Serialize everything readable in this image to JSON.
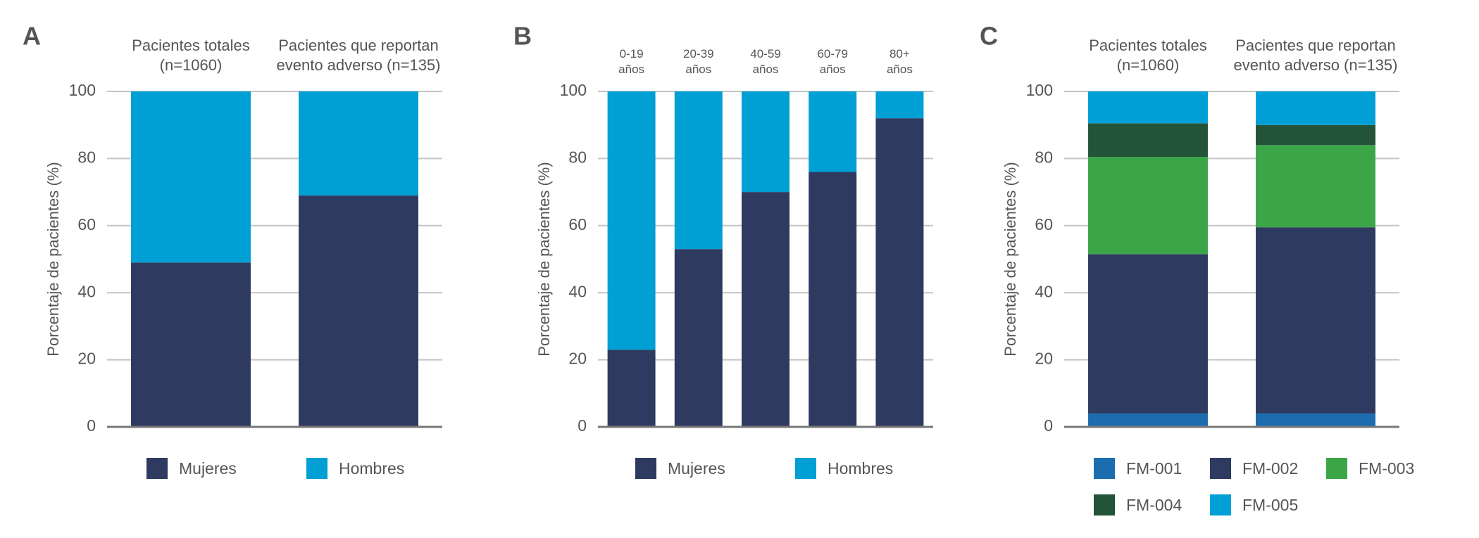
{
  "chart_data": [
    {
      "type": "bar",
      "stacked": true,
      "label": "A",
      "ylabel": "Porcentaje de pacientes (%)",
      "categories": [
        "Pacientes totales (n=1060)",
        "Pacientes que reportan evento adverso (n=135)"
      ],
      "series": [
        {
          "name": "Mujeres",
          "color": "#2e3a5f",
          "values": [
            49,
            69
          ]
        },
        {
          "name": "Hombres",
          "color": "#009fd4",
          "values": [
            51,
            31
          ]
        }
      ],
      "ylim": [
        0,
        100
      ],
      "yticks": [
        0,
        20,
        40,
        60,
        80,
        100
      ],
      "grid": true
    },
    {
      "type": "bar",
      "stacked": true,
      "label": "B",
      "ylabel": "Porcentaje de pacientes (%)",
      "categories": [
        "0-19 años",
        "20-39 años",
        "40-59 años",
        "60-79 años",
        "80+ años"
      ],
      "series": [
        {
          "name": "Mujeres",
          "color": "#2e3a5f",
          "values": [
            23,
            53,
            70,
            76,
            92
          ]
        },
        {
          "name": "Hombres",
          "color": "#009fd4",
          "values": [
            77,
            47,
            30,
            24,
            8
          ]
        }
      ],
      "ylim": [
        0,
        100
      ],
      "yticks": [
        0,
        20,
        40,
        60,
        80,
        100
      ],
      "grid": true
    },
    {
      "type": "bar",
      "stacked": true,
      "label": "C",
      "ylabel": "Porcentaje de pacientes (%)",
      "categories": [
        "Pacientes totales (n=1060)",
        "Pacientes que reportan evento adverso (n=135)"
      ],
      "series": [
        {
          "name": "FM-001",
          "color": "#1c6db0",
          "values": [
            4,
            4
          ]
        },
        {
          "name": "FM-002",
          "color": "#2e3a5f",
          "values": [
            47.5,
            55.5
          ]
        },
        {
          "name": "FM-003",
          "color": "#3ba648",
          "values": [
            29,
            24.5
          ]
        },
        {
          "name": "FM-004",
          "color": "#245438",
          "values": [
            10,
            6
          ]
        },
        {
          "name": "FM-005",
          "color": "#00a0d6",
          "values": [
            9.5,
            10
          ]
        }
      ],
      "ylim": [
        0,
        100
      ],
      "yticks": [
        0,
        20,
        40,
        60,
        80,
        100
      ],
      "grid": true
    }
  ]
}
